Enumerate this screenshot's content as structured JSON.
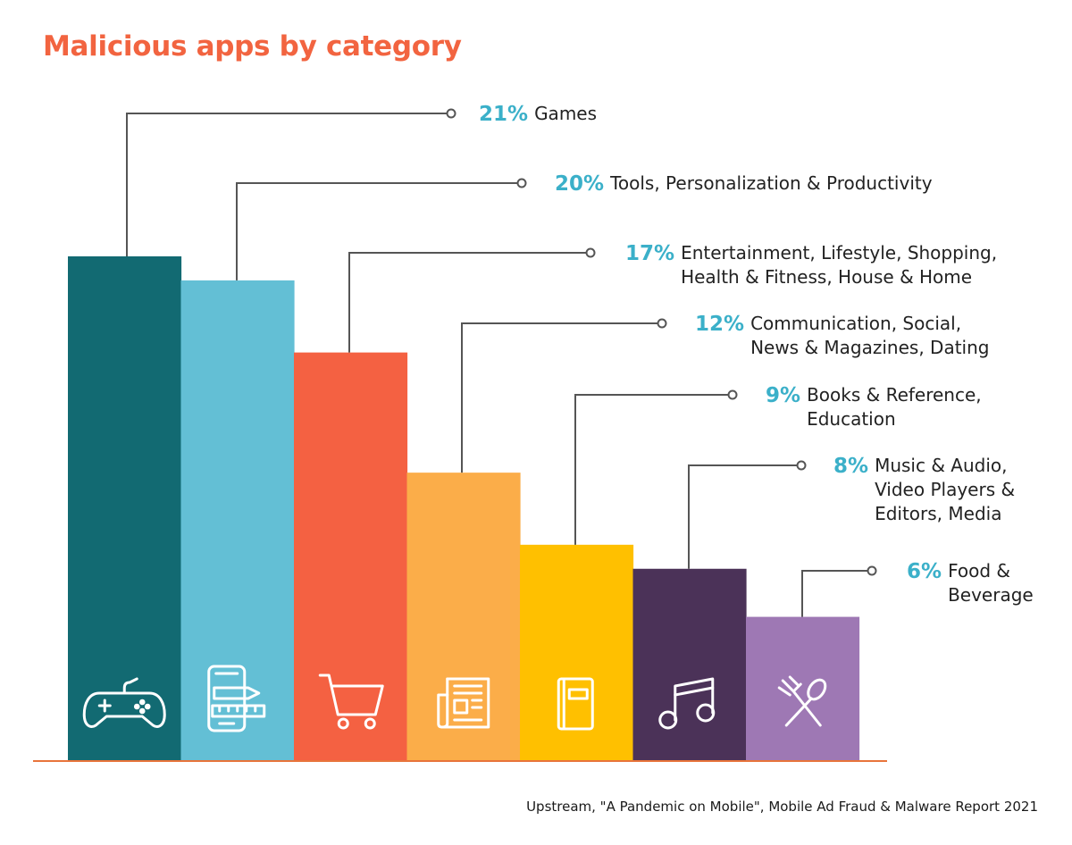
{
  "chart_data": {
    "type": "bar",
    "title": "Malicious apps by category",
    "unit": "%",
    "categories": [
      "Games",
      "Tools, Personalization & Productivity",
      "Entertainment, Lifestyle, Shopping, Health & Fitness, House & Home",
      "Communication, Social, News & Magazines, Dating",
      "Books & Reference, Education",
      "Music & Audio, Video Players & Editors, Media",
      "Food & Beverage"
    ],
    "values": [
      21,
      20,
      17,
      12,
      9,
      8,
      6
    ],
    "value_labels": [
      "21%",
      "20%",
      "17%",
      "12%",
      "9%",
      "8%",
      "6%"
    ],
    "label_lines": [
      [
        "Games"
      ],
      [
        "Tools, Personalization & Productivity"
      ],
      [
        "Entertainment, Lifestyle, Shopping,",
        "Health & Fitness, House & Home"
      ],
      [
        "Communication, Social,",
        "News & Magazines, Dating"
      ],
      [
        "Books & Reference,",
        "Education"
      ],
      [
        "Music & Audio,",
        "Video Players &",
        "Editors, Media"
      ],
      [
        "Food &",
        "Beverage"
      ]
    ],
    "colors": [
      "#126a72",
      "#63bfd5",
      "#f46142",
      "#fbad49",
      "#ffc000",
      "#4b3258",
      "#9e78b4"
    ],
    "icons": [
      "gamepad-icon",
      "phone-tools-icon",
      "shopping-cart-icon",
      "newspaper-icon",
      "book-icon",
      "music-note-icon",
      "fork-spoon-icon"
    ],
    "xlabel": "",
    "ylabel": "",
    "ylim": [
      0,
      21
    ],
    "grid": false,
    "legend": "none"
  },
  "source": "Upstream, \"A Pandemic on Mobile\", Mobile Ad Fraud & Malware Report 2021",
  "colors": {
    "title": "#f26440",
    "percent": "#3bb0c9",
    "leader": "#555555",
    "baseline": "#e8743b"
  }
}
